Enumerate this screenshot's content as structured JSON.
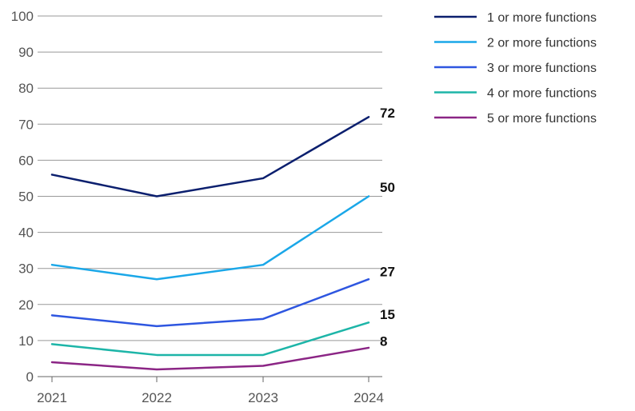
{
  "chart_data": {
    "type": "line",
    "x": [
      "2021",
      "2022",
      "2023",
      "2024"
    ],
    "ylim": [
      0,
      100
    ],
    "yticks": [
      "0",
      "10",
      "20",
      "30",
      "40",
      "50",
      "60",
      "70",
      "80",
      "90",
      "100"
    ],
    "grid": true,
    "legend": "top-right",
    "series": [
      {
        "name": "1 or more functions",
        "values": [
          56,
          50,
          55,
          72
        ],
        "color": "#0b1f6e",
        "end_label": "72"
      },
      {
        "name": "2 or more functions",
        "values": [
          31,
          27,
          31,
          50
        ],
        "color": "#1aa7e8",
        "end_label": "50"
      },
      {
        "name": "3 or more functions",
        "values": [
          17,
          14,
          16,
          27
        ],
        "color": "#2e56e0",
        "end_label": "27"
      },
      {
        "name": "4 or more functions",
        "values": [
          9,
          6,
          6,
          15
        ],
        "color": "#1db5a8",
        "end_label": "15"
      },
      {
        "name": "5 or more functions",
        "values": [
          4,
          2,
          3,
          8
        ],
        "color": "#8b2585",
        "end_label": "8"
      }
    ]
  }
}
